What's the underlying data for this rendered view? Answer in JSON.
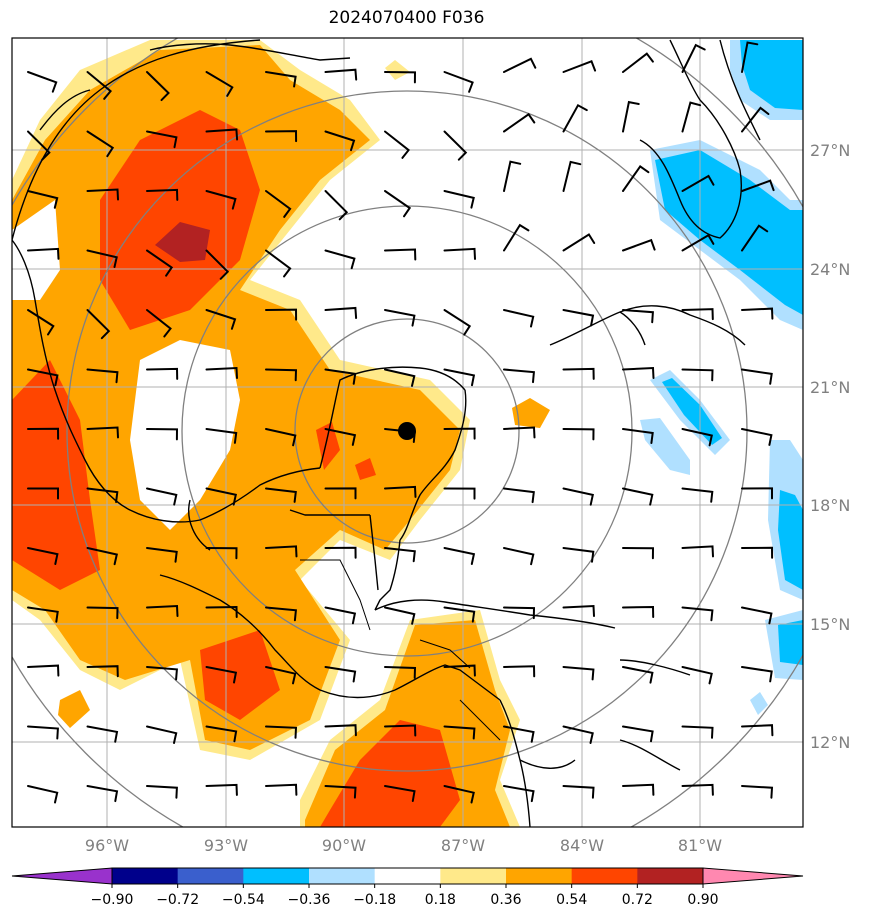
{
  "title": "2024070400 F036",
  "map": {
    "lon_labels": [
      "96°W",
      "93°W",
      "90°W",
      "87°W",
      "84°W",
      "81°W"
    ],
    "lat_labels": [
      "27°N",
      "24°N",
      "21°N",
      "18°N",
      "15°N",
      "12°N"
    ],
    "center_marker": "storm-center"
  },
  "colorbar": {
    "levels": [
      "−0.90",
      "−0.72",
      "−0.54",
      "−0.36",
      "−0.18",
      "0.18",
      "0.36",
      "0.54",
      "0.72",
      "0.90"
    ],
    "colors": [
      "#9932cc",
      "#00008b",
      "#3a5fcd",
      "#00bfff",
      "#b0e0ff",
      "#ffffff",
      "#ffe98a",
      "#ffa500",
      "#ff4500",
      "#b22222",
      "#ff88b0"
    ]
  }
}
